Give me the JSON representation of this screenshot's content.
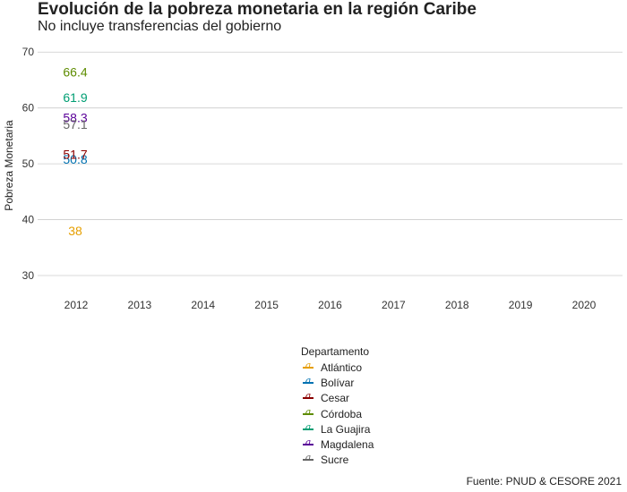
{
  "title": "Evolución de la pobreza monetaria en la región Caribe",
  "subtitle": "No incluye transferencias del gobierno",
  "caption": "Fuente: PNUD & CESORE 2021",
  "legend": {
    "title": "Departamento",
    "key_glyph": "a",
    "items": [
      {
        "label": "Atlántico",
        "color": "#E69F00"
      },
      {
        "label": "Bolívar",
        "color": "#0072B2"
      },
      {
        "label": "Cesar",
        "color": "#8B0000"
      },
      {
        "label": "Córdoba",
        "color": "#5E8C00"
      },
      {
        "label": "La Guajira",
        "color": "#009E73"
      },
      {
        "label": "Magdalena",
        "color": "#5A0099"
      },
      {
        "label": "Sucre",
        "color": "#666666"
      }
    ]
  },
  "chart_data": {
    "type": "line",
    "title": "Evolución de la pobreza monetaria en la región Caribe",
    "subtitle": "No incluye transferencias del gobierno",
    "xlabel": "",
    "ylabel": "Pobreza Monetaria",
    "categories": [
      "2012",
      "2013",
      "2014",
      "2015",
      "2016",
      "2017",
      "2018",
      "2019",
      "2020"
    ],
    "yticks": [
      30,
      40,
      50,
      60,
      70
    ],
    "ylim": [
      26.8,
      72.6
    ],
    "grid": "horizontal",
    "legend_position": "bottom",
    "series": [
      {
        "name": "Atlántico",
        "color": "#E69F00",
        "points": [
          {
            "x": "2012",
            "y": 38,
            "label": "38"
          }
        ]
      },
      {
        "name": "Bolívar",
        "color": "#0072B2",
        "points": [
          {
            "x": "2012",
            "y": 50.8,
            "label": "50.8"
          }
        ]
      },
      {
        "name": "Cesar",
        "color": "#8B0000",
        "points": [
          {
            "x": "2012",
            "y": 51.7,
            "label": "51.7"
          }
        ]
      },
      {
        "name": "Córdoba",
        "color": "#5E8C00",
        "points": [
          {
            "x": "2012",
            "y": 66.4,
            "label": "66.4"
          }
        ]
      },
      {
        "name": "La Guajira",
        "color": "#009E73",
        "points": [
          {
            "x": "2012",
            "y": 61.9,
            "label": "61.9"
          }
        ]
      },
      {
        "name": "Magdalena",
        "color": "#5A0099",
        "points": [
          {
            "x": "2012",
            "y": 58.3,
            "label": "58.3"
          }
        ]
      },
      {
        "name": "Sucre",
        "color": "#666666",
        "points": [
          {
            "x": "2012",
            "y": 57.1,
            "label": "57.1"
          }
        ]
      }
    ]
  }
}
